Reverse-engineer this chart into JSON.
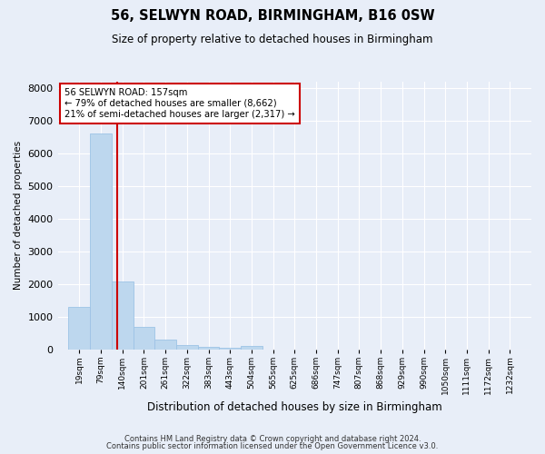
{
  "title1": "56, SELWYN ROAD, BIRMINGHAM, B16 0SW",
  "title2": "Size of property relative to detached houses in Birmingham",
  "xlabel": "Distribution of detached houses by size in Birmingham",
  "ylabel": "Number of detached properties",
  "categories": [
    "19sqm",
    "79sqm",
    "140sqm",
    "201sqm",
    "261sqm",
    "322sqm",
    "383sqm",
    "443sqm",
    "504sqm",
    "565sqm",
    "625sqm",
    "686sqm",
    "747sqm",
    "807sqm",
    "868sqm",
    "929sqm",
    "990sqm",
    "1050sqm",
    "1111sqm",
    "1172sqm",
    "1232sqm"
  ],
  "values": [
    1300,
    6600,
    2080,
    680,
    290,
    120,
    75,
    55,
    90,
    0,
    0,
    0,
    0,
    0,
    0,
    0,
    0,
    0,
    0,
    0,
    0
  ],
  "bar_color": "#bdd7ee",
  "bar_edge_color": "#9dc3e6",
  "property_label": "56 SELWYN ROAD: 157sqm",
  "annotation_line1": "← 79% of detached houses are smaller (8,662)",
  "annotation_line2": "21% of semi-detached houses are larger (2,317) →",
  "vline_color": "#cc0000",
  "annotation_box_color": "#ffffff",
  "annotation_box_edge": "#cc0000",
  "ylim": [
    0,
    8200
  ],
  "bin_width": 61,
  "vline_x": 157,
  "background_color": "#e8eef8",
  "grid_color": "#ffffff",
  "footer1": "Contains HM Land Registry data © Crown copyright and database right 2024.",
  "footer2": "Contains public sector information licensed under the Open Government Licence v3.0.",
  "left_edges": [
    19,
    79,
    140,
    201,
    261,
    322,
    383,
    443,
    504,
    565,
    625,
    686,
    747,
    807,
    868,
    929,
    990,
    1050,
    1111,
    1172,
    1232
  ]
}
